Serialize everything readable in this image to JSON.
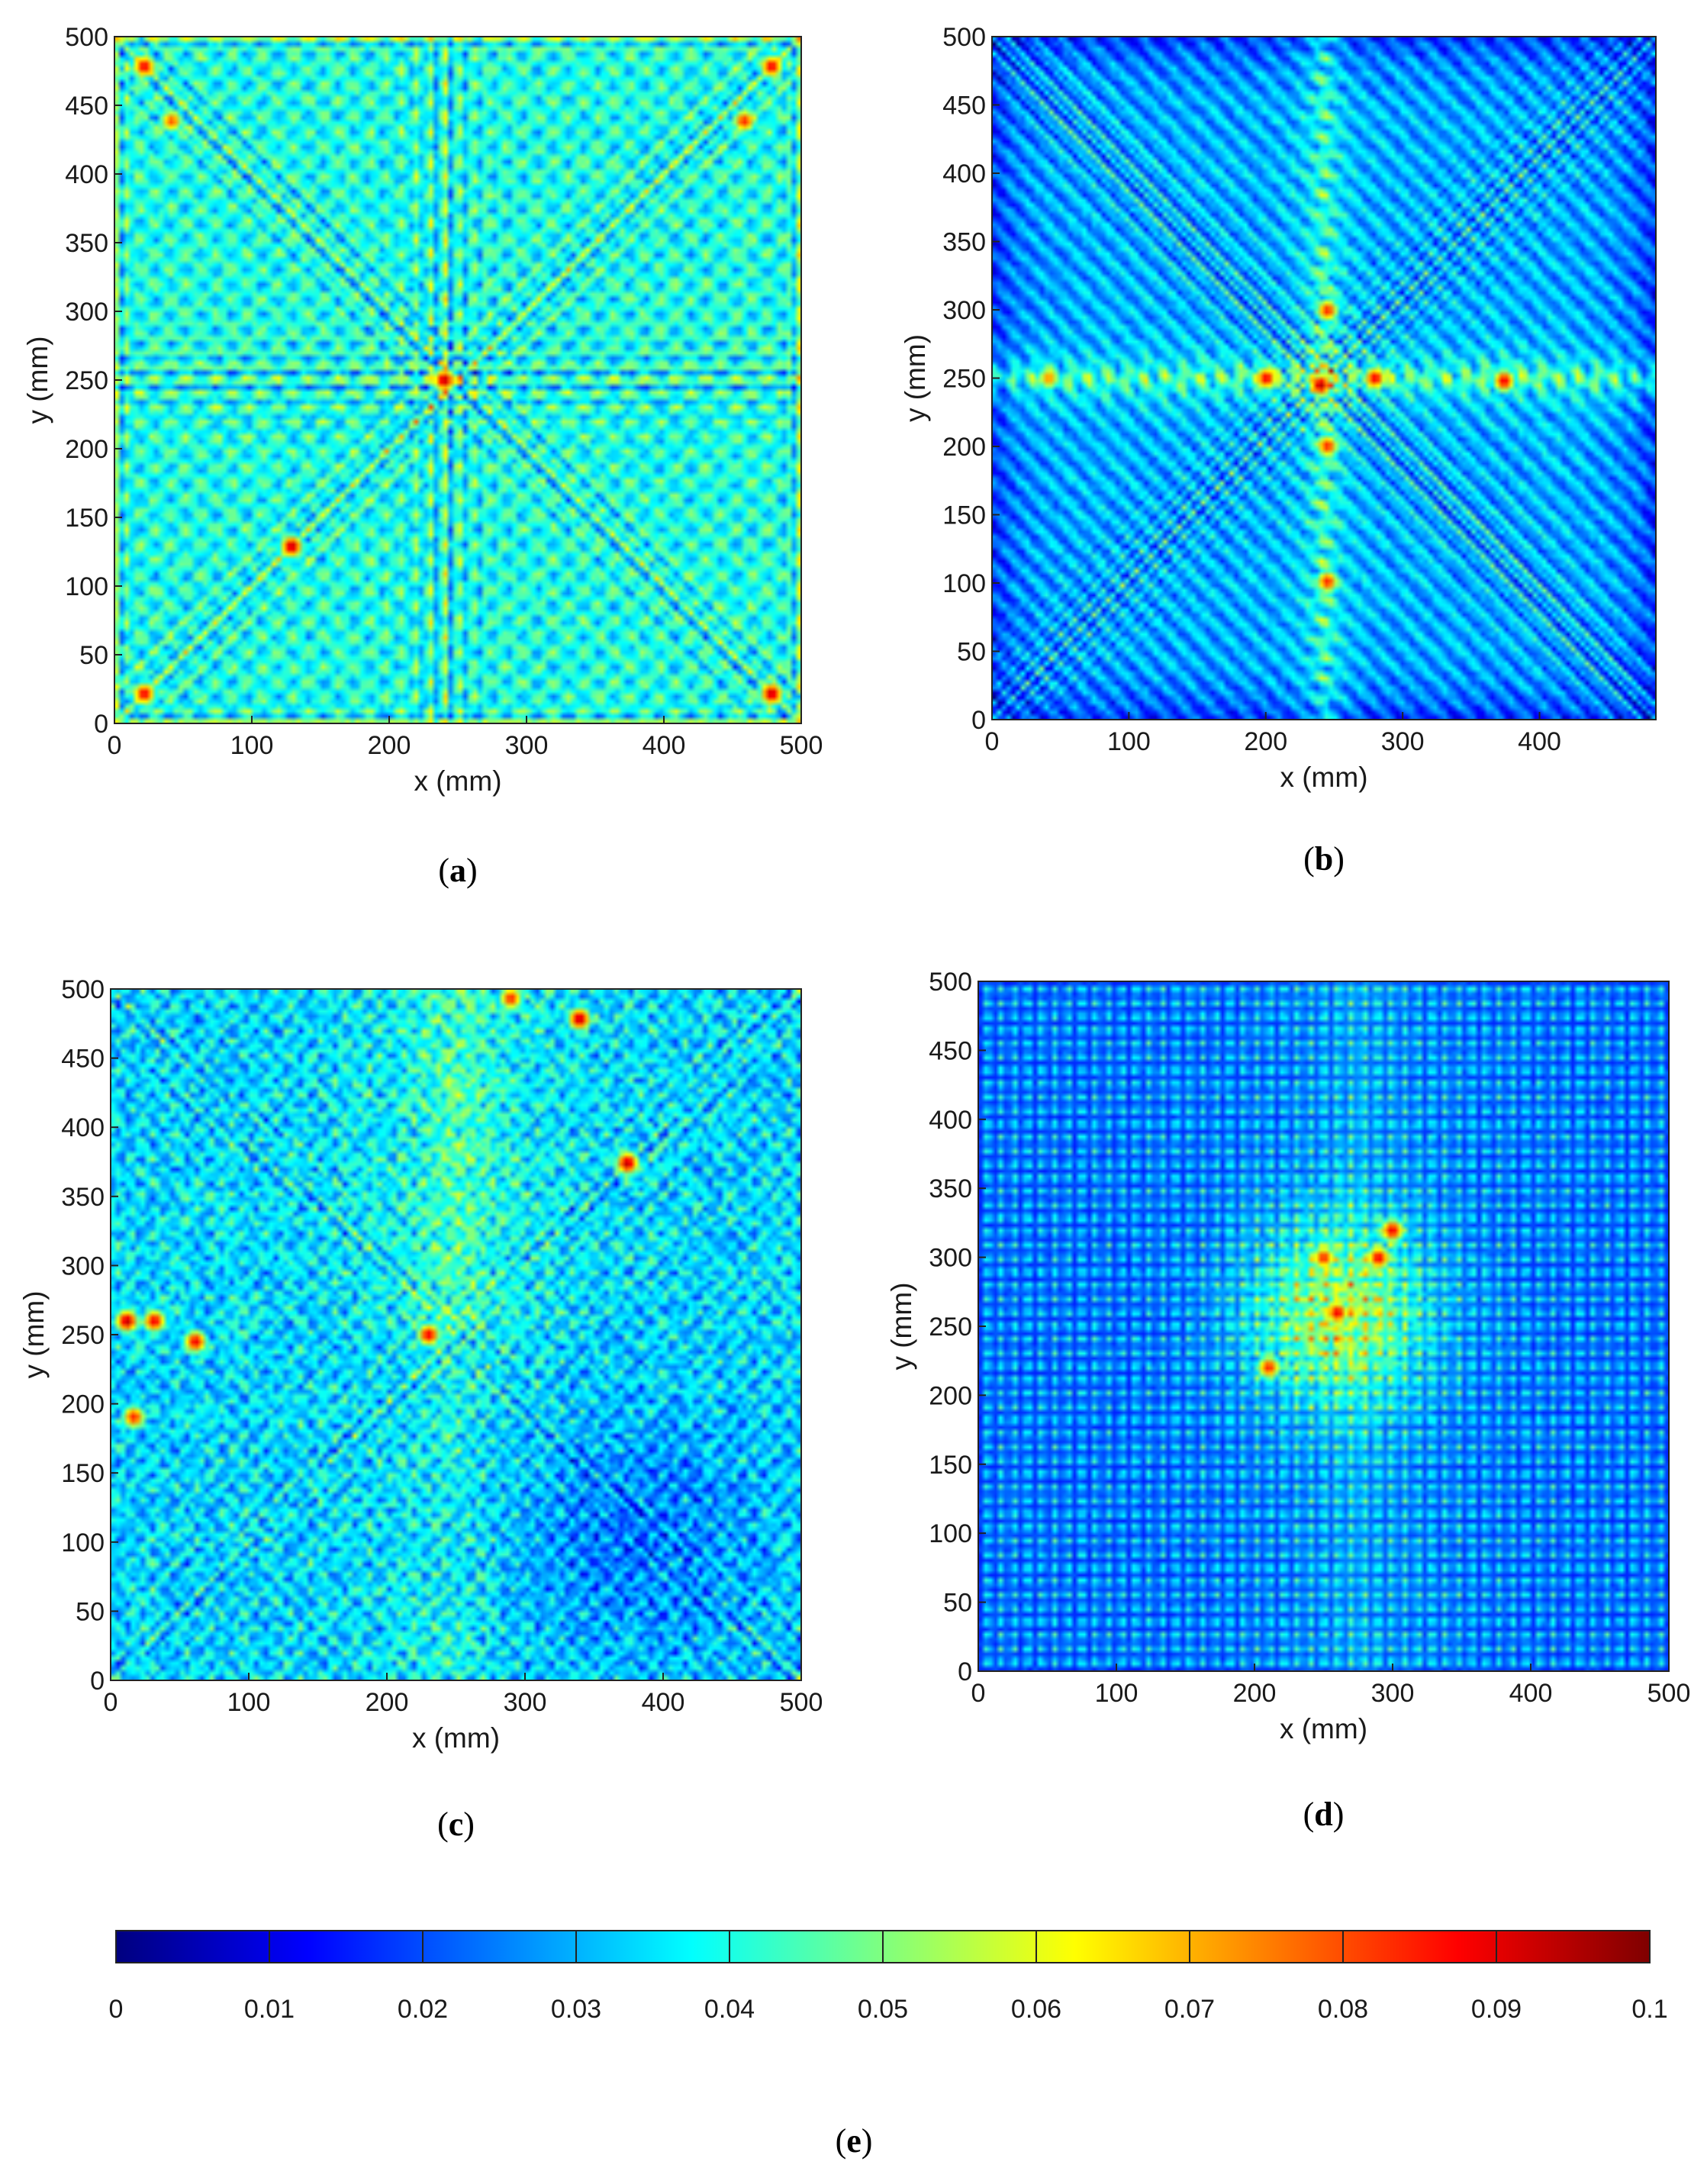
{
  "chart_data": [
    {
      "type": "heatmap",
      "panel": "a",
      "caption_letter": "a",
      "xlabel": "x (mm)",
      "ylabel": "y (mm)",
      "xlim": [
        0,
        500
      ],
      "ylim": [
        0,
        500
      ],
      "xticks": [
        0,
        100,
        200,
        300,
        400,
        500
      ],
      "yticks": [
        0,
        50,
        100,
        150,
        200,
        250,
        300,
        350,
        400,
        450,
        500
      ],
      "pattern": "diagonal cross with central interference and bright edges",
      "hotspots": [
        {
          "x": 240,
          "y": 250,
          "v": 0.095
        },
        {
          "x": 128,
          "y": 128,
          "v": 0.095
        },
        {
          "x": 20,
          "y": 480,
          "v": 0.09
        },
        {
          "x": 480,
          "y": 480,
          "v": 0.09
        },
        {
          "x": 20,
          "y": 20,
          "v": 0.09
        },
        {
          "x": 480,
          "y": 20,
          "v": 0.095
        },
        {
          "x": 460,
          "y": 440,
          "v": 0.085
        },
        {
          "x": 40,
          "y": 440,
          "v": 0.08
        }
      ]
    },
    {
      "type": "heatmap",
      "panel": "b",
      "caption_letter": "b",
      "xlabel": "x (mm)",
      "ylabel": "y (mm)",
      "xlim": [
        0,
        485
      ],
      "ylim": [
        0,
        500
      ],
      "xticks": [
        0,
        100,
        200,
        300,
        400
      ],
      "yticks": [
        0,
        50,
        100,
        150,
        200,
        250,
        300,
        350,
        400,
        450,
        500
      ],
      "pattern": "diagonal cross with strong central horizontal and vertical beams",
      "hotspots": [
        {
          "x": 240,
          "y": 245,
          "v": 0.095
        },
        {
          "x": 200,
          "y": 250,
          "v": 0.09
        },
        {
          "x": 280,
          "y": 250,
          "v": 0.09
        },
        {
          "x": 375,
          "y": 248,
          "v": 0.09
        },
        {
          "x": 245,
          "y": 300,
          "v": 0.085
        },
        {
          "x": 245,
          "y": 100,
          "v": 0.085
        },
        {
          "x": 245,
          "y": 200,
          "v": 0.085
        },
        {
          "x": 40,
          "y": 250,
          "v": 0.075
        }
      ]
    },
    {
      "type": "heatmap",
      "panel": "c",
      "caption_letter": "c",
      "xlabel": "x (mm)",
      "ylabel": "y (mm)",
      "xlim": [
        0,
        500
      ],
      "ylim": [
        0,
        500
      ],
      "xticks": [
        0,
        100,
        200,
        300,
        400,
        500
      ],
      "yticks": [
        0,
        50,
        100,
        150,
        200,
        250,
        300,
        350,
        400,
        450,
        500
      ],
      "pattern": "diagonal cross with noisy speckle, hot spots on left edge and top",
      "hotspots": [
        {
          "x": 10,
          "y": 260,
          "v": 0.095
        },
        {
          "x": 30,
          "y": 260,
          "v": 0.09
        },
        {
          "x": 60,
          "y": 245,
          "v": 0.09
        },
        {
          "x": 230,
          "y": 250,
          "v": 0.09
        },
        {
          "x": 340,
          "y": 480,
          "v": 0.095
        },
        {
          "x": 375,
          "y": 375,
          "v": 0.095
        },
        {
          "x": 290,
          "y": 495,
          "v": 0.085
        },
        {
          "x": 15,
          "y": 190,
          "v": 0.085
        }
      ]
    },
    {
      "type": "heatmap",
      "panel": "d",
      "caption_letter": "d",
      "xlabel": "x (mm)",
      "ylabel": "y (mm)",
      "xlim": [
        0,
        500
      ],
      "ylim": [
        0,
        500
      ],
      "xticks": [
        0,
        100,
        200,
        300,
        400,
        500
      ],
      "yticks": [
        0,
        50,
        100,
        150,
        200,
        250,
        300,
        350,
        400,
        450,
        500
      ],
      "pattern": "dotted lattice with a bright central region",
      "hotspots": [
        {
          "x": 260,
          "y": 260,
          "v": 0.09
        },
        {
          "x": 290,
          "y": 300,
          "v": 0.09
        },
        {
          "x": 210,
          "y": 220,
          "v": 0.085
        },
        {
          "x": 250,
          "y": 300,
          "v": 0.085
        },
        {
          "x": 300,
          "y": 320,
          "v": 0.09
        }
      ]
    },
    {
      "type": "colorbar",
      "caption_letter": "e",
      "range": [
        0,
        0.1
      ],
      "tick_labels": [
        "0",
        "0.01",
        "0.02",
        "0.03",
        "0.04",
        "0.05",
        "0.06",
        "0.07",
        "0.08",
        "0.09",
        "0.1"
      ],
      "colormap": "jet",
      "colors": [
        "#00007f",
        "#0000ff",
        "#007fff",
        "#00ffff",
        "#7fff7f",
        "#ffff00",
        "#ff7f00",
        "#ff0000",
        "#7f0000"
      ]
    }
  ]
}
